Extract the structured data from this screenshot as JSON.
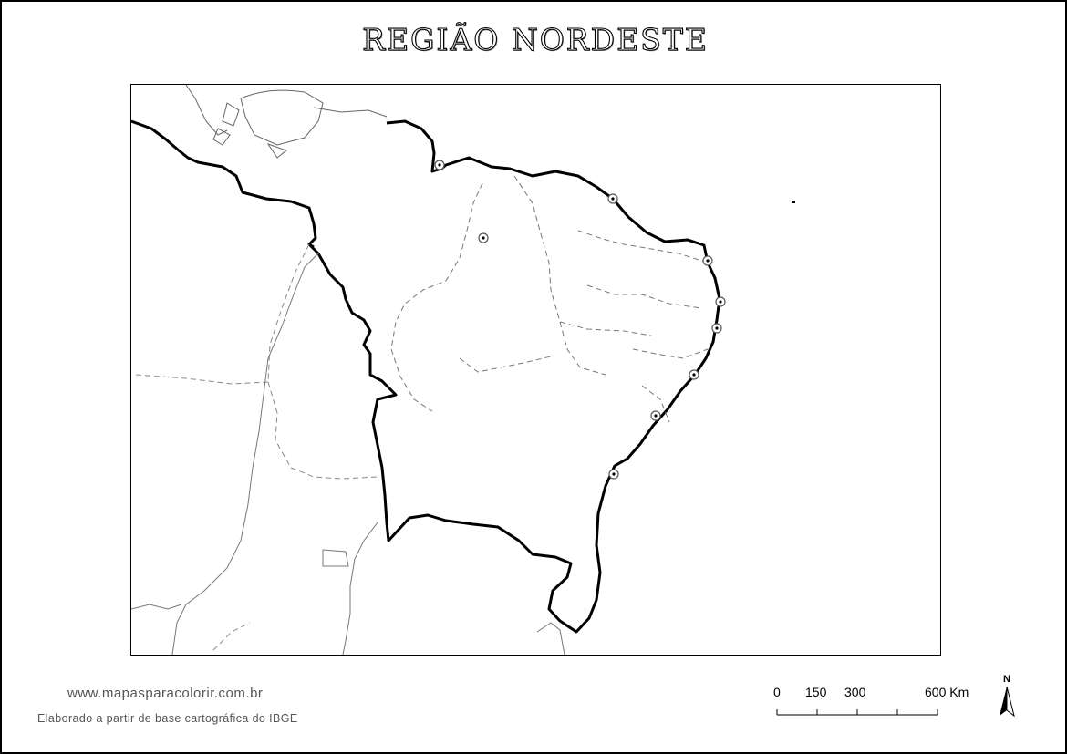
{
  "title": "REGIÃO NORDESTE",
  "footer": {
    "website": "www.mapasparacolorir.com.br",
    "credit": "Elaborado a partir de base cartográfica do IBGE"
  },
  "scale_bar": {
    "labels": [
      "0",
      "150",
      "300",
      "600 Km"
    ],
    "values_km": [
      0,
      150,
      300,
      600
    ]
  },
  "north_arrow": {
    "label": "N"
  },
  "map": {
    "region": "Nordeste",
    "capital_markers": 10,
    "colors": {
      "region_border": "#000000",
      "state_border": "#777777",
      "marker": "#555555"
    }
  }
}
